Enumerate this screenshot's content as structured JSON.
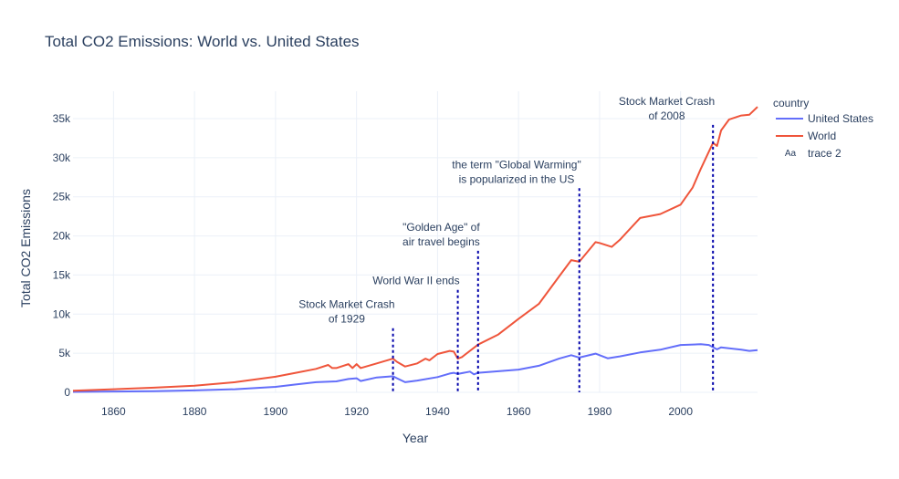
{
  "chart_data": {
    "type": "line",
    "title": "Total CO2 Emissions: World vs. United States",
    "xlabel": "Year",
    "ylabel": "Total CO2 Emissions",
    "xlim": [
      1850,
      2019
    ],
    "ylim": [
      0,
      38500
    ],
    "x_ticks": [
      1860,
      1880,
      1900,
      1920,
      1940,
      1960,
      1980,
      2000
    ],
    "x_tick_labels": [
      "1860",
      "1880",
      "1900",
      "1920",
      "1940",
      "1960",
      "1980",
      "2000"
    ],
    "y_ticks": [
      0,
      5000,
      10000,
      15000,
      20000,
      25000,
      30000,
      35000
    ],
    "y_tick_labels": [
      "0",
      "5k",
      "10k",
      "15k",
      "20k",
      "25k",
      "30k",
      "35k"
    ],
    "grid": true,
    "legend": {
      "title": "country",
      "placement": "top-right",
      "entries": [
        "United States",
        "World",
        "trace 2"
      ],
      "text_marker": "Aa"
    },
    "series": [
      {
        "name": "United States",
        "color": "#636efa",
        "x": [
          1850,
          1860,
          1870,
          1880,
          1890,
          1900,
          1905,
          1910,
          1915,
          1918,
          1920,
          1921,
          1925,
          1929,
          1930,
          1932,
          1935,
          1940,
          1943,
          1944,
          1945,
          1946,
          1948,
          1949,
          1950,
          1955,
          1960,
          1965,
          1970,
          1973,
          1975,
          1979,
          1982,
          1985,
          1990,
          1995,
          2000,
          2005,
          2007,
          2009,
          2010,
          2015,
          2017,
          2019
        ],
        "y": [
          60,
          100,
          150,
          250,
          400,
          700,
          1000,
          1300,
          1400,
          1700,
          1800,
          1450,
          1900,
          2050,
          1800,
          1300,
          1500,
          1950,
          2400,
          2500,
          2350,
          2450,
          2650,
          2300,
          2500,
          2700,
          2900,
          3400,
          4300,
          4750,
          4450,
          4950,
          4350,
          4600,
          5100,
          5450,
          6050,
          6150,
          6050,
          5500,
          5750,
          5450,
          5300,
          5400
        ]
      },
      {
        "name": "World",
        "color": "#ef553b",
        "x": [
          1850,
          1860,
          1870,
          1880,
          1890,
          1900,
          1905,
          1910,
          1913,
          1914,
          1915,
          1918,
          1919,
          1920,
          1921,
          1925,
          1929,
          1930,
          1932,
          1935,
          1937,
          1938,
          1940,
          1943,
          1944,
          1945,
          1946,
          1950,
          1955,
          1960,
          1965,
          1970,
          1973,
          1974,
          1975,
          1979,
          1980,
          1983,
          1985,
          1990,
          1995,
          2000,
          2003,
          2005,
          2008,
          2009,
          2010,
          2012,
          2015,
          2017,
          2019
        ],
        "y": [
          200,
          400,
          600,
          850,
          1300,
          2000,
          2500,
          3000,
          3500,
          3100,
          3100,
          3600,
          3100,
          3600,
          3100,
          3700,
          4300,
          3900,
          3300,
          3700,
          4300,
          4100,
          4900,
          5300,
          5200,
          4300,
          4500,
          6100,
          7400,
          9400,
          11300,
          14800,
          16900,
          16800,
          16700,
          19200,
          19100,
          18600,
          19500,
          22300,
          22800,
          24000,
          26200,
          28600,
          31900,
          31500,
          33500,
          34900,
          35400,
          35500,
          36500
        ]
      }
    ],
    "annotations": [
      {
        "year": 1929,
        "y_top": 8200,
        "lines": [
          "Stock Market Crash",
          "of 1929"
        ]
      },
      {
        "year": 1945,
        "y_top": 13100,
        "lines": [
          "World War II ends"
        ]
      },
      {
        "year": 1950,
        "y_top": 18100,
        "lines": [
          "\"Golden Age\" of",
          "air travel begins"
        ]
      },
      {
        "year": 1975,
        "y_top": 26100,
        "lines": [
          "the term \"Global Warming\"",
          "is popularized in the US"
        ]
      },
      {
        "year": 2008,
        "y_top": 34200,
        "lines": [
          "Stock Market Crash",
          "of 2008"
        ]
      }
    ],
    "annotation_line_color": "#0000aa"
  }
}
